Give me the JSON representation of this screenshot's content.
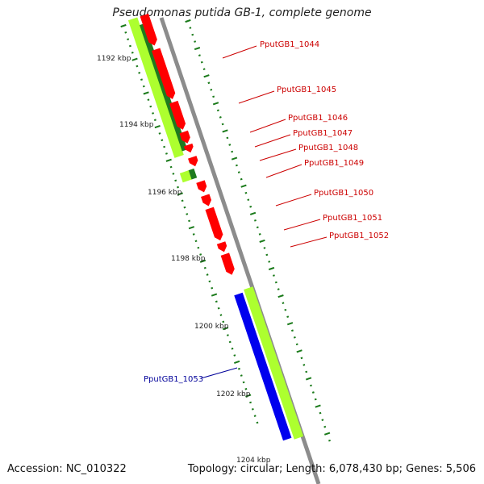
{
  "title": "Pseudomonas putida GB-1, complete genome",
  "footer": {
    "accession": "Accession: NC_010322",
    "topology": "Topology: circular; Length: 6,078,430 bp; Genes: 5,506"
  },
  "colors": {
    "backbone": "#8c8c8c",
    "forward_gene": "#ff0000",
    "reverse_gene": "#0000ee",
    "cds_bar": "#adff2f",
    "cds_bar_dark": "#1f7a1f",
    "tick": "#1a7a1a",
    "label_forward": "#cc0000",
    "label_reverse": "#000099"
  },
  "scale_labels": [
    "1192 kbp",
    "1194 kbp",
    "1196 kbp",
    "1198 kbp",
    "1200 kbp",
    "1202 kbp",
    "1204 kbp"
  ],
  "gene_labels": [
    {
      "text": "PputGB1_1044",
      "strand": "forward"
    },
    {
      "text": "PputGB1_1045",
      "strand": "forward"
    },
    {
      "text": "PputGB1_1046",
      "strand": "forward"
    },
    {
      "text": "PputGB1_1047",
      "strand": "forward"
    },
    {
      "text": "PputGB1_1048",
      "strand": "forward"
    },
    {
      "text": "PputGB1_1049",
      "strand": "forward"
    },
    {
      "text": "PputGB1_1050",
      "strand": "forward"
    },
    {
      "text": "PputGB1_1051",
      "strand": "forward"
    },
    {
      "text": "PputGB1_1052",
      "strand": "forward"
    },
    {
      "text": "PputGB1_1053",
      "strand": "reverse"
    }
  ]
}
